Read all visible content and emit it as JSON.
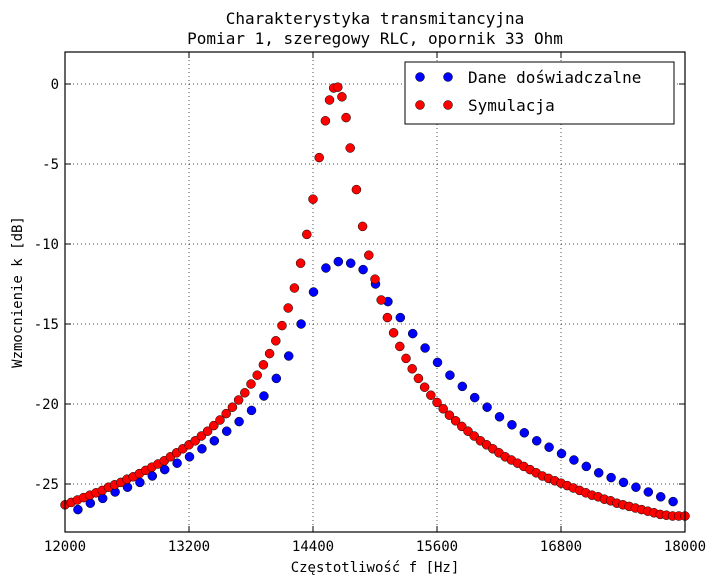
{
  "chart_data": {
    "type": "scatter",
    "title": "Charakterystyka transmitancyjna",
    "subtitle": "Pomiar 1, szeregowy RLC, opornik 33 Ohm",
    "xlabel": "Częstotliwość f [Hz]",
    "ylabel": "Wzmocnienie k [dB]",
    "xlim": [
      12000,
      18000
    ],
    "ylim": [
      -28,
      2
    ],
    "x_ticks": [
      12000,
      13200,
      14400,
      15600,
      16800,
      18000
    ],
    "y_ticks": [
      0,
      -5,
      -10,
      -15,
      -20,
      -25
    ],
    "grid": true,
    "legend_position": "top-right",
    "series": [
      {
        "name": "Dane doświadczalne",
        "color": "#0000ff",
        "x": [
          12125,
          12245,
          12365,
          12485,
          12605,
          12725,
          12845,
          12965,
          13085,
          13205,
          13325,
          13445,
          13565,
          13685,
          13805,
          13925,
          14045,
          14165,
          14285,
          14405,
          14525,
          14645,
          14765,
          14885,
          15005,
          15125,
          15245,
          15365,
          15485,
          15605,
          15725,
          15845,
          15965,
          16085,
          16205,
          16325,
          16445,
          16565,
          16685,
          16805,
          16925,
          17045,
          17165,
          17285,
          17405,
          17525,
          17645,
          17765,
          17885
        ],
        "y": [
          -26.6,
          -26.2,
          -25.9,
          -25.5,
          -25.2,
          -24.9,
          -24.5,
          -24.1,
          -23.7,
          -23.3,
          -22.8,
          -22.3,
          -21.7,
          -21.1,
          -20.4,
          -19.5,
          -18.4,
          -17.0,
          -15.0,
          -13.0,
          -11.5,
          -11.1,
          -11.2,
          -11.6,
          -12.5,
          -13.6,
          -14.6,
          -15.6,
          -16.5,
          -17.4,
          -18.2,
          -18.9,
          -19.6,
          -20.2,
          -20.8,
          -21.3,
          -21.8,
          -22.3,
          -22.7,
          -23.1,
          -23.5,
          -23.9,
          -24.3,
          -24.6,
          -24.9,
          -25.2,
          -25.5,
          -25.8,
          -26.1
        ]
      },
      {
        "name": "Symulacja",
        "color": "#ff0000",
        "x": [
          12000,
          12060,
          12120,
          12180,
          12240,
          12300,
          12360,
          12420,
          12480,
          12540,
          12600,
          12660,
          12720,
          12780,
          12840,
          12900,
          12960,
          13020,
          13080,
          13140,
          13200,
          13260,
          13320,
          13380,
          13440,
          13500,
          13560,
          13620,
          13680,
          13740,
          13800,
          13860,
          13920,
          13980,
          14040,
          14100,
          14160,
          14220,
          14280,
          14340,
          14400,
          14460,
          14520,
          14560,
          14600,
          14640,
          14680,
          14720,
          14760,
          14820,
          14880,
          14940,
          15000,
          15060,
          15120,
          15180,
          15240,
          15300,
          15360,
          15420,
          15480,
          15540,
          15600,
          15660,
          15720,
          15780,
          15840,
          15900,
          15960,
          16020,
          16080,
          16140,
          16200,
          16260,
          16320,
          16380,
          16440,
          16500,
          16560,
          16620,
          16680,
          16740,
          16800,
          16860,
          16920,
          16980,
          17040,
          17100,
          17160,
          17220,
          17280,
          17340,
          17400,
          17460,
          17520,
          17580,
          17640,
          17700,
          17760,
          17820,
          17880,
          17940,
          18000
        ],
        "y": [
          -26.3,
          -26.15,
          -26.0,
          -25.85,
          -25.7,
          -25.55,
          -25.4,
          -25.2,
          -25.05,
          -24.9,
          -24.7,
          -24.55,
          -24.35,
          -24.15,
          -23.95,
          -23.75,
          -23.55,
          -23.3,
          -23.05,
          -22.8,
          -22.55,
          -22.3,
          -22.0,
          -21.7,
          -21.35,
          -21.0,
          -20.6,
          -20.2,
          -19.75,
          -19.3,
          -18.75,
          -18.2,
          -17.55,
          -16.85,
          -16.05,
          -15.1,
          -14.0,
          -12.75,
          -11.2,
          -9.4,
          -7.2,
          -4.6,
          -2.3,
          -1.0,
          -0.25,
          -0.2,
          -0.8,
          -2.1,
          -4.0,
          -6.6,
          -8.9,
          -10.7,
          -12.2,
          -13.5,
          -14.6,
          -15.55,
          -16.4,
          -17.15,
          -17.8,
          -18.4,
          -18.95,
          -19.45,
          -19.9,
          -20.3,
          -20.7,
          -21.05,
          -21.4,
          -21.7,
          -22.0,
          -22.3,
          -22.55,
          -22.8,
          -23.05,
          -23.3,
          -23.5,
          -23.7,
          -23.9,
          -24.1,
          -24.3,
          -24.5,
          -24.65,
          -24.8,
          -24.95,
          -25.1,
          -25.25,
          -25.4,
          -25.55,
          -25.7,
          -25.8,
          -25.95,
          -26.05,
          -26.2,
          -26.3,
          -26.4,
          -26.5,
          -26.6,
          -26.7,
          -26.8,
          -26.9,
          -26.95,
          -27.0,
          -27.0,
          -27.0
        ]
      }
    ]
  }
}
